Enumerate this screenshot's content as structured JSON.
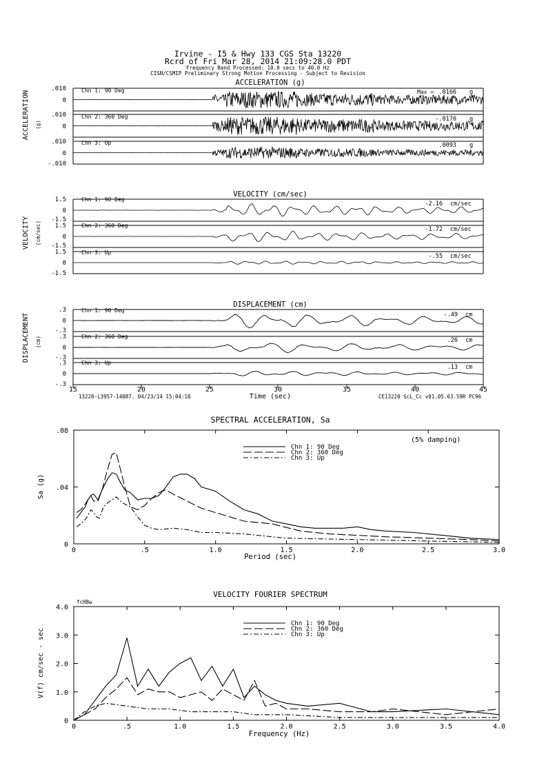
{
  "header": {
    "line1": "Irvine - I5 & Hwy 133      CGS Sta 13220",
    "line2": "Rcrd of Fri Mar 28, 2014 21:09:28.0 PDT",
    "line3": "Frequency Band Processed: 10.0 secs to 40.0 Hz",
    "line4": "CISN/CSMIP Preliminary Strong Motion Processing - Subject to Revision"
  },
  "footer": {
    "left": "13220-L3957-14087. 04/23/14 15:04:18",
    "right": "CE13220  ScL_Cc  v01.05.63.59R PC96"
  },
  "time_axis": {
    "label": "Time (sec)",
    "ticks": [
      "15",
      "20",
      "25",
      "30",
      "35",
      "40",
      "45"
    ]
  },
  "chart_data": [
    {
      "type": "line",
      "title": "ACCELERATION (g)",
      "ylabel": "ACCELERATION",
      "yunit": "(g)",
      "x_range": [
        15,
        45
      ],
      "ylim": [
        -0.01,
        0.01
      ],
      "tick_labels": [
        ".010",
        "0",
        "-.010"
      ],
      "max_label": "Max =",
      "unit": "g",
      "channels": [
        {
          "name": "Chn 1: 90 Deg",
          "peak": ".0166"
        },
        {
          "name": "Chn 2: 360 Deg",
          "peak": "-.0170"
        },
        {
          "name": "Chn 3: Up",
          "peak": ".0093"
        }
      ]
    },
    {
      "type": "line",
      "title": "VELOCITY (cm/sec)",
      "ylabel": "VELOCITY",
      "yunit": "(cm/sec)",
      "x_range": [
        15,
        45
      ],
      "ylim": [
        -1.5,
        1.5
      ],
      "tick_labels": [
        "1.5",
        "0",
        "-1.5"
      ],
      "unit": "cm/sec",
      "channels": [
        {
          "name": "Chn 1: 90 Deg",
          "peak": "-2.16"
        },
        {
          "name": "Chn 2: 360 Deg",
          "peak": "-1.72"
        },
        {
          "name": "Chn 3: Up",
          "peak": "-.55"
        }
      ]
    },
    {
      "type": "line",
      "title": "DISPLACEMENT (cm)",
      "ylabel": "DISPLACEMENT",
      "yunit": "(cm)",
      "x_range": [
        15,
        45
      ],
      "ylim": [
        -0.3,
        0.3
      ],
      "tick_labels": [
        ".3",
        "0",
        "-.3"
      ],
      "unit": "cm",
      "channels": [
        {
          "name": "Chn 1: 90 Deg",
          "peak": "-.49"
        },
        {
          "name": "Chn 2: 360 Deg",
          "peak": ".26"
        },
        {
          "name": "Chn 3: Up",
          "peak": ".13"
        }
      ]
    },
    {
      "type": "line",
      "title": "SPECTRAL ACCELERATION, Sa",
      "xlabel": "Period (sec)",
      "ylabel": "Sa (g)",
      "note": "(5% damping)",
      "xlim": [
        0,
        3.0
      ],
      "ylim": [
        0,
        0.08
      ],
      "xticks": [
        "0",
        ".5",
        "1.0",
        "1.5",
        "2.0",
        "2.5",
        "3.0"
      ],
      "yticks": [
        "0",
        ".04",
        ".08"
      ],
      "legend_position": "top-center",
      "series": [
        {
          "name": "Chn 1: 90 Deg",
          "style": "solid",
          "x": [
            0.02,
            0.05,
            0.08,
            0.1,
            0.12,
            0.14,
            0.17,
            0.2,
            0.24,
            0.27,
            0.3,
            0.33,
            0.36,
            0.4,
            0.45,
            0.5,
            0.55,
            0.6,
            0.65,
            0.7,
            0.75,
            0.8,
            0.85,
            0.9,
            1.0,
            1.1,
            1.2,
            1.3,
            1.4,
            1.5,
            1.6,
            1.7,
            1.8,
            1.9,
            2.0,
            2.1,
            2.2,
            2.4,
            2.6,
            2.8,
            3.0
          ],
          "y": [
            0.018,
            0.022,
            0.026,
            0.031,
            0.034,
            0.035,
            0.031,
            0.038,
            0.046,
            0.05,
            0.049,
            0.043,
            0.038,
            0.036,
            0.031,
            0.032,
            0.032,
            0.034,
            0.04,
            0.047,
            0.049,
            0.049,
            0.046,
            0.04,
            0.037,
            0.03,
            0.024,
            0.021,
            0.016,
            0.014,
            0.012,
            0.011,
            0.011,
            0.011,
            0.012,
            0.01,
            0.009,
            0.008,
            0.006,
            0.004,
            0.003
          ]
        },
        {
          "name": "Chn 2: 360 Deg",
          "style": "dashed",
          "x": [
            0.02,
            0.05,
            0.08,
            0.1,
            0.12,
            0.14,
            0.17,
            0.2,
            0.24,
            0.27,
            0.3,
            0.33,
            0.36,
            0.4,
            0.45,
            0.5,
            0.55,
            0.6,
            0.65,
            0.7,
            0.8,
            0.9,
            1.0,
            1.2,
            1.4,
            1.6,
            1.8,
            2.0,
            2.2,
            2.5,
            2.8,
            3.0
          ],
          "y": [
            0.022,
            0.024,
            0.028,
            0.031,
            0.034,
            0.03,
            0.03,
            0.038,
            0.053,
            0.063,
            0.064,
            0.052,
            0.04,
            0.026,
            0.024,
            0.027,
            0.032,
            0.036,
            0.038,
            0.035,
            0.03,
            0.025,
            0.022,
            0.016,
            0.014,
            0.009,
            0.007,
            0.006,
            0.005,
            0.004,
            0.003,
            0.002
          ]
        },
        {
          "name": "Chn 3: Up",
          "style": "dashdot",
          "x": [
            0.02,
            0.05,
            0.08,
            0.1,
            0.12,
            0.14,
            0.16,
            0.18,
            0.21,
            0.24,
            0.27,
            0.3,
            0.33,
            0.36,
            0.4,
            0.45,
            0.5,
            0.55,
            0.6,
            0.7,
            0.8,
            0.9,
            1.0,
            1.2,
            1.5,
            2.0,
            2.5,
            3.0
          ],
          "y": [
            0.012,
            0.014,
            0.017,
            0.02,
            0.024,
            0.022,
            0.019,
            0.018,
            0.026,
            0.029,
            0.031,
            0.033,
            0.03,
            0.028,
            0.026,
            0.019,
            0.013,
            0.011,
            0.01,
            0.011,
            0.01,
            0.008,
            0.008,
            0.007,
            0.004,
            0.003,
            0.002,
            0.001
          ]
        }
      ]
    },
    {
      "type": "line",
      "title": "VELOCITY FOURIER SPECTRUM",
      "xlabel": "Frequency (Hz)",
      "ylabel": "V(f)  cm/sec - sec",
      "corner_label": "fcH8w",
      "xlim": [
        0,
        4.0
      ],
      "ylim": [
        0,
        4.0
      ],
      "xticks": [
        "0",
        ".5",
        "1.0",
        "1.5",
        "2.0",
        "2.5",
        "3.0",
        "3.5",
        "4.0"
      ],
      "yticks": [
        "0",
        "1.0",
        "2.0",
        "3.0",
        "4.0"
      ],
      "legend_position": "top-center",
      "series": [
        {
          "name": "Chn 1: 90 Deg",
          "style": "solid",
          "x": [
            0.0,
            0.1,
            0.2,
            0.3,
            0.4,
            0.5,
            0.6,
            0.7,
            0.8,
            0.9,
            1.0,
            1.1,
            1.2,
            1.3,
            1.4,
            1.5,
            1.6,
            1.7,
            1.8,
            1.9,
            2.0,
            2.2,
            2.5,
            2.8,
            3.0,
            3.5,
            4.0
          ],
          "y": [
            0.0,
            0.2,
            0.7,
            1.2,
            1.6,
            2.9,
            1.2,
            1.8,
            1.2,
            1.7,
            2.0,
            2.2,
            1.4,
            1.9,
            1.2,
            1.8,
            0.8,
            1.2,
            0.9,
            0.7,
            0.6,
            0.5,
            0.6,
            0.3,
            0.3,
            0.4,
            0.2
          ]
        },
        {
          "name": "Chn 2: 360 Deg",
          "style": "dashed",
          "x": [
            0.0,
            0.1,
            0.2,
            0.3,
            0.4,
            0.5,
            0.6,
            0.7,
            0.8,
            0.9,
            1.0,
            1.1,
            1.2,
            1.3,
            1.4,
            1.5,
            1.6,
            1.7,
            1.8,
            1.9,
            2.0,
            2.2,
            2.5,
            2.8,
            3.0,
            3.5,
            4.0
          ],
          "y": [
            0.0,
            0.2,
            0.4,
            0.8,
            1.1,
            1.5,
            0.9,
            1.1,
            1.0,
            1.0,
            0.8,
            0.9,
            1.0,
            0.7,
            1.1,
            0.9,
            0.7,
            1.4,
            0.5,
            0.6,
            0.4,
            0.4,
            0.3,
            0.3,
            0.4,
            0.2,
            0.4
          ]
        },
        {
          "name": "Chn 3: Up",
          "style": "dashdot",
          "x": [
            0.0,
            0.1,
            0.2,
            0.3,
            0.5,
            0.7,
            0.9,
            1.1,
            1.3,
            1.5,
            1.7,
            2.0,
            2.5,
            3.0,
            3.5,
            4.0
          ],
          "y": [
            0.0,
            0.3,
            0.5,
            0.6,
            0.5,
            0.4,
            0.4,
            0.3,
            0.3,
            0.3,
            0.2,
            0.2,
            0.1,
            0.1,
            0.1,
            0.1
          ]
        }
      ]
    }
  ]
}
